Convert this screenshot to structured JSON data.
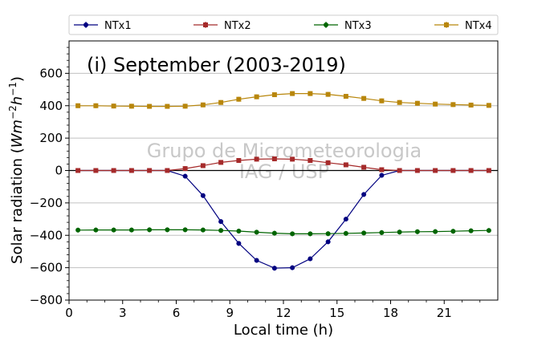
{
  "chart_data": {
    "type": "line",
    "title": "(i) September (2003-2019)",
    "watermark": [
      "Grupo de Micrometeorologia",
      "IAG / USP"
    ],
    "xlabel": "Local time (h)",
    "ylabel_main": "Solar radiation (",
    "ylabel_unit": "Wm",
    "ylabel_exp1": "−2",
    "ylabel_h": "h",
    "ylabel_exp2": "−1",
    "ylabel_close": ")",
    "xlim": [
      0,
      24
    ],
    "ylim": [
      -800,
      800
    ],
    "xticks": [
      0,
      3,
      6,
      9,
      12,
      15,
      18,
      21
    ],
    "yticks": [
      -800,
      -600,
      -400,
      -200,
      0,
      200,
      400,
      600
    ],
    "grid": "horizontal",
    "legend_position": "top, outside plot",
    "x": [
      0.5,
      1.5,
      2.5,
      3.5,
      4.5,
      5.5,
      6.5,
      7.5,
      8.5,
      9.5,
      10.5,
      11.5,
      12.5,
      13.5,
      14.5,
      15.5,
      16.5,
      17.5,
      18.5,
      19.5,
      20.5,
      21.5,
      22.5,
      23.5
    ],
    "series": [
      {
        "name": "NTx1",
        "color": "#000080",
        "marker": "circle",
        "values": [
          0,
          0,
          0,
          0,
          0,
          0,
          -35,
          -155,
          -315,
          -450,
          -555,
          -603,
          -600,
          -545,
          -440,
          -300,
          -148,
          -30,
          0,
          0,
          0,
          0,
          0,
          0
        ]
      },
      {
        "name": "NTx2",
        "color": "#a52a2a",
        "marker": "square",
        "values": [
          0,
          0,
          0,
          0,
          0,
          0,
          12,
          30,
          50,
          62,
          70,
          72,
          70,
          62,
          48,
          35,
          20,
          5,
          0,
          0,
          0,
          0,
          0,
          0
        ]
      },
      {
        "name": "NTx3",
        "color": "#006400",
        "marker": "circle",
        "values": [
          -368,
          -367,
          -367,
          -367,
          -366,
          -366,
          -366,
          -367,
          -370,
          -374,
          -381,
          -387,
          -391,
          -391,
          -390,
          -388,
          -386,
          -383,
          -380,
          -378,
          -377,
          -375,
          -372,
          -370
        ]
      },
      {
        "name": "NTx4",
        "color": "#b8860b",
        "marker": "square",
        "values": [
          400,
          400,
          398,
          397,
          396,
          396,
          397,
          405,
          420,
          440,
          455,
          468,
          475,
          475,
          470,
          458,
          445,
          430,
          420,
          415,
          410,
          407,
          404,
          402
        ]
      }
    ]
  }
}
